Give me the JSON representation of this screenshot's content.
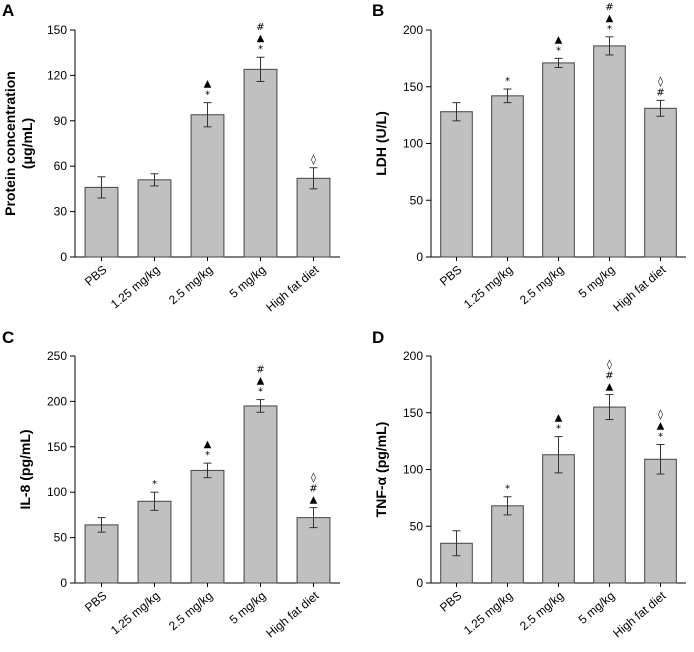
{
  "colors": {
    "bar_fill": "#c0c0c0",
    "bar_stroke": "#444444",
    "axis": "#000000"
  },
  "chart_data": [
    {
      "type": "bar",
      "panel": "A",
      "ylabel": "Protein concentration\n(μg/mL)",
      "ylim": [
        0,
        150
      ],
      "yticks": [
        0,
        30,
        60,
        90,
        120,
        150
      ],
      "categories": [
        "PBS",
        "1.25 mg/kg",
        "2.5 mg/kg",
        "5 mg/kg",
        "High fat diet"
      ],
      "values": [
        46,
        51,
        94,
        124,
        52
      ],
      "errors": [
        7,
        4,
        8,
        8,
        7
      ],
      "annotations": [
        [],
        [],
        [
          "*",
          "▲"
        ],
        [
          "*",
          "▲",
          "#"
        ],
        [
          "◊"
        ]
      ]
    },
    {
      "type": "bar",
      "panel": "B",
      "ylabel": "LDH (U/L)",
      "ylim": [
        0,
        200
      ],
      "yticks": [
        0,
        50,
        100,
        150,
        200
      ],
      "categories": [
        "PBS",
        "1.25 mg/kg",
        "2.5 mg/kg",
        "5 mg/kg",
        "High fat diet"
      ],
      "values": [
        128,
        142,
        171,
        186,
        131
      ],
      "errors": [
        8,
        6,
        4,
        8,
        7
      ],
      "annotations": [
        [],
        [
          "*"
        ],
        [
          "*",
          "▲"
        ],
        [
          "*",
          "▲",
          "#"
        ],
        [
          "#",
          "◊"
        ]
      ]
    },
    {
      "type": "bar",
      "panel": "C",
      "ylabel": "IL-8 (pg/mL)",
      "ylim": [
        0,
        250
      ],
      "yticks": [
        0,
        50,
        100,
        150,
        200,
        250
      ],
      "categories": [
        "PBS",
        "1.25 mg/kg",
        "2.5 mg/kg",
        "5 mg/kg",
        "High fat diet"
      ],
      "values": [
        64,
        90,
        124,
        195,
        72
      ],
      "errors": [
        8,
        10,
        8,
        7,
        11
      ],
      "annotations": [
        [],
        [
          "*"
        ],
        [
          "*",
          "▲"
        ],
        [
          "*",
          "▲",
          "#"
        ],
        [
          "▲",
          "#",
          "◊"
        ]
      ]
    },
    {
      "type": "bar",
      "panel": "D",
      "ylabel": "TNF-α (pg/mL)",
      "ylim": [
        0,
        200
      ],
      "yticks": [
        0,
        50,
        100,
        150,
        200
      ],
      "categories": [
        "PBS",
        "1.25 mg/kg",
        "2.5 mg/kg",
        "5 mg/kg",
        "High fat diet"
      ],
      "values": [
        35,
        68,
        113,
        155,
        109
      ],
      "errors": [
        11,
        8,
        16,
        11,
        13
      ],
      "annotations": [
        [],
        [
          "*"
        ],
        [
          "*",
          "▲"
        ],
        [
          "▲",
          "#",
          "◊"
        ],
        [
          "*",
          "▲",
          "◊"
        ]
      ]
    }
  ]
}
